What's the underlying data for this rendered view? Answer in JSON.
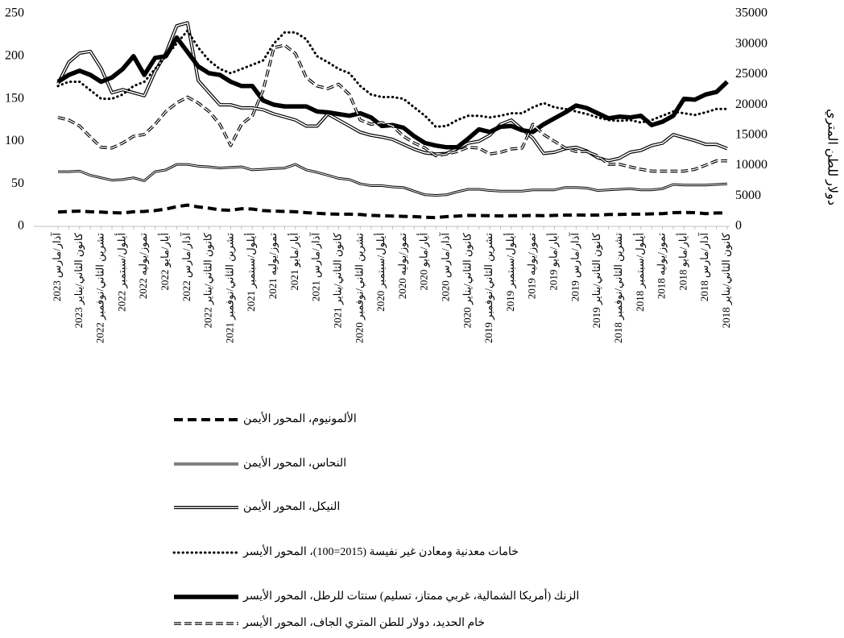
{
  "chart_data": {
    "type": "line",
    "categories": [
      "آذار/مارس 2023",
      null,
      "كانون الثاني/يناير 2023",
      null,
      "تشرين الثاني/نوفمبر 2022",
      null,
      "أيلول/سبتمبر 2022",
      null,
      "تموز/يوليه 2022",
      null,
      "أيار/مايو 2022",
      null,
      "آذار/مارس 2022",
      null,
      "كانون الثاني/يناير 2022",
      null,
      "تشرين الثاني/نوفمبر 2021",
      null,
      "أيلول/سبتمبر 2021",
      null,
      "تموز/يوليه 2021",
      null,
      "أيار/مايو 2021",
      null,
      "آذار/مارس 2021",
      null,
      "كانون الثاني/يناير 2021",
      null,
      "تشرين الثاني/نوفمبر 2020",
      null,
      "أيلول/سبتمبر 2020",
      null,
      "تموز/يوليه 2020",
      null,
      "أيار/مايو 2020",
      null,
      "آذار/مارس 2020",
      null,
      "كانون الثاني/يناير 2020",
      null,
      "تشرين الثاني/نوفمبر 2019",
      null,
      "أيلول/سبتمبر 2019",
      null,
      "تموز/يوليه 2019",
      null,
      "أيار/مايو 2019",
      null,
      "آذار/مارس 2019",
      null,
      "كانون الثاني/يناير 2019",
      null,
      "تشرين الثاني/نوفمبر 2018",
      null,
      "أيلول/سبتمبر 2018",
      null,
      "تموز/يوليه 2018",
      null,
      "أيار/مايو 2018",
      null,
      "آذار/مارس 2018",
      null,
      "كانون الثاني/يناير 2018"
    ],
    "ylim": [
      0,
      250
    ],
    "yticks": [
      0,
      50,
      100,
      150,
      200,
      250
    ],
    "y2lim": [
      0,
      35000
    ],
    "y2ticks": [
      0,
      5000,
      10000,
      15000,
      20000,
      25000,
      30000,
      35000
    ],
    "y2_label": "دولار للطن المتري",
    "series": [
      {
        "name": "الألمونيوم، المحور الأيمن",
        "axis": "y2",
        "color": "#000000",
        "line_style": "dashed",
        "values": [
          2350,
          2450,
          2500,
          2400,
          2350,
          2250,
          2200,
          2400,
          2450,
          2600,
          2850,
          3250,
          3500,
          3200,
          3000,
          2700,
          2650,
          2900,
          2850,
          2600,
          2500,
          2450,
          2400,
          2250,
          2150,
          2050,
          2000,
          2000,
          1950,
          1800,
          1750,
          1700,
          1650,
          1600,
          1500,
          1450,
          1600,
          1700,
          1800,
          1780,
          1750,
          1720,
          1750,
          1750,
          1800,
          1750,
          1800,
          1850,
          1870,
          1850,
          1850,
          1950,
          1950,
          2000,
          2000,
          2050,
          2100,
          2250,
          2300,
          2250,
          2100,
          2200,
          2200
        ]
      },
      {
        "name": "النحاس، المحور الأيمن",
        "axis": "y2",
        "color": "#000000",
        "line_style": "double-thin",
        "values": [
          9000,
          9000,
          9100,
          8400,
          8000,
          7600,
          7700,
          8000,
          7500,
          9000,
          9300,
          10200,
          10200,
          9900,
          9800,
          9600,
          9700,
          9800,
          9300,
          9400,
          9500,
          9600,
          10200,
          9300,
          8900,
          8400,
          7900,
          7700,
          7000,
          6700,
          6700,
          6500,
          6400,
          5800,
          5200,
          5100,
          5200,
          5700,
          6100,
          6100,
          5900,
          5800,
          5800,
          5800,
          6000,
          6000,
          6000,
          6400,
          6400,
          6300,
          5900,
          6000,
          6100,
          6200,
          6000,
          6000,
          6200,
          6900,
          6800,
          6800,
          6800,
          6900,
          7000
        ]
      },
      {
        "name": "النيكل، المحور الأيمن",
        "axis": "y2",
        "color": "#000000",
        "line_style": "double",
        "values": [
          23500,
          27000,
          28500,
          28800,
          26000,
          22000,
          22500,
          22000,
          21500,
          25500,
          28500,
          33000,
          33500,
          24000,
          22000,
          20000,
          20000,
          19500,
          19500,
          19200,
          18500,
          18000,
          17500,
          16500,
          16500,
          18500,
          17500,
          16500,
          15500,
          15000,
          14700,
          14300,
          13500,
          12700,
          12100,
          11900,
          12000,
          12800,
          13700,
          14000,
          15000,
          16800,
          17500,
          16000,
          14500,
          12000,
          12200,
          12800,
          13000,
          12400,
          11300,
          10800,
          11200,
          12200,
          12500,
          13300,
          13700,
          15100,
          14600,
          14100,
          13500,
          13500,
          12800
        ]
      },
      {
        "name": "خامات معدنية ومعادن غير نفيسة (2015=100)، المحور الأيسر",
        "axis": "y",
        "color": "#000000",
        "line_style": "dotted",
        "values": [
          165,
          170,
          170,
          160,
          150,
          150,
          155,
          165,
          170,
          185,
          200,
          215,
          230,
          210,
          195,
          185,
          180,
          185,
          190,
          195,
          215,
          228,
          228,
          220,
          200,
          193,
          185,
          180,
          165,
          155,
          152,
          152,
          150,
          140,
          130,
          117,
          118,
          125,
          130,
          130,
          128,
          130,
          133,
          133,
          140,
          145,
          140,
          138,
          135,
          132,
          128,
          125,
          124,
          125,
          122,
          125,
          130,
          135,
          133,
          131,
          134,
          138,
          138
        ]
      },
      {
        "name": "الزنك (أمريكا الشمالية، غربي ممتاز، تسليم) سنتات للرطل، المحور الأيسر",
        "axis": "y",
        "color": "#000000",
        "line_style": "thick",
        "values": [
          170,
          178,
          183,
          178,
          170,
          175,
          185,
          200,
          178,
          198,
          200,
          222,
          205,
          188,
          180,
          178,
          170,
          165,
          165,
          148,
          143,
          141,
          141,
          141,
          135,
          134,
          132,
          130,
          133,
          128,
          118,
          119,
          116,
          106,
          98,
          95,
          93,
          93,
          103,
          114,
          111,
          117,
          118,
          113,
          111,
          120,
          127,
          134,
          142,
          139,
          133,
          127,
          129,
          128,
          130,
          119,
          123,
          130,
          150,
          149,
          155,
          158,
          170
        ]
      },
      {
        "name": "خام الحديد، دولار للطن المتري الجاف، المحور الأيسر",
        "axis": "y",
        "color": "#000000",
        "line_style": "double-dashed",
        "values": [
          128,
          125,
          118,
          105,
          93,
          92,
          98,
          106,
          108,
          120,
          135,
          145,
          152,
          145,
          135,
          120,
          95,
          120,
          130,
          160,
          210,
          213,
          203,
          175,
          165,
          162,
          167,
          155,
          125,
          120,
          122,
          118,
          106,
          98,
          92,
          83,
          85,
          88,
          93,
          92,
          85,
          87,
          91,
          92,
          120,
          108,
          100,
          92,
          88,
          88,
          83,
          73,
          73,
          70,
          67,
          65,
          65,
          65,
          65,
          67,
          72,
          77,
          77
        ]
      }
    ]
  }
}
